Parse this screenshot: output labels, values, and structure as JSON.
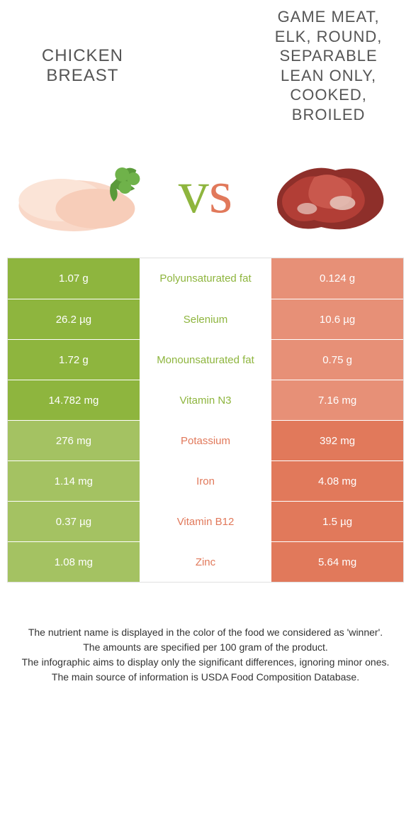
{
  "colors": {
    "left": "#8eb53e",
    "right": "#e1795b",
    "left_dim": "#a4c262",
    "right_dim": "#e79077",
    "mid_text_left": "#8eb53e",
    "mid_text_right": "#e1795b"
  },
  "header": {
    "left_title": "Chicken breast",
    "right_title": "Game meat, elk, round, separable lean only, cooked, broiled"
  },
  "vs": {
    "v": "v",
    "s": "s"
  },
  "rows": [
    {
      "name": "Polyunsaturated fat",
      "left": "1.07 g",
      "right": "0.124 g",
      "winner": "left"
    },
    {
      "name": "Selenium",
      "left": "26.2 µg",
      "right": "10.6 µg",
      "winner": "left"
    },
    {
      "name": "Monounsaturated fat",
      "left": "1.72 g",
      "right": "0.75 g",
      "winner": "left"
    },
    {
      "name": "Vitamin N3",
      "label": "Vitamin N3",
      "name_actual": "Vitamin N3",
      "left": "14.782 mg",
      "right": "7.16 mg",
      "winner": "left"
    },
    {
      "name": "Potassium",
      "left": "276 mg",
      "right": "392 mg",
      "winner": "right"
    },
    {
      "name": "Iron",
      "left": "1.14 mg",
      "right": "4.08 mg",
      "winner": "right"
    },
    {
      "name": "Vitamin B12",
      "left": "0.37 µg",
      "right": "1.5 µg",
      "winner": "right"
    },
    {
      "name": "Zinc",
      "left": "1.08 mg",
      "right": "5.64 mg",
      "winner": "right"
    }
  ],
  "row_labels": [
    "Polyunsaturated fat",
    "Selenium",
    "Monounsaturated fat",
    "Vitamin N3",
    "Potassium",
    "Iron",
    "Vitamin B12",
    "Zinc"
  ],
  "footer": {
    "l1": "The nutrient name is displayed in the color of the food we considered as 'winner'.",
    "l2": "The amounts are specified per 100 gram of the product.",
    "l3": "The infographic aims to display only the significant differences, ignoring minor ones.",
    "l4": "The main source of information is USDA Food Composition Database."
  }
}
